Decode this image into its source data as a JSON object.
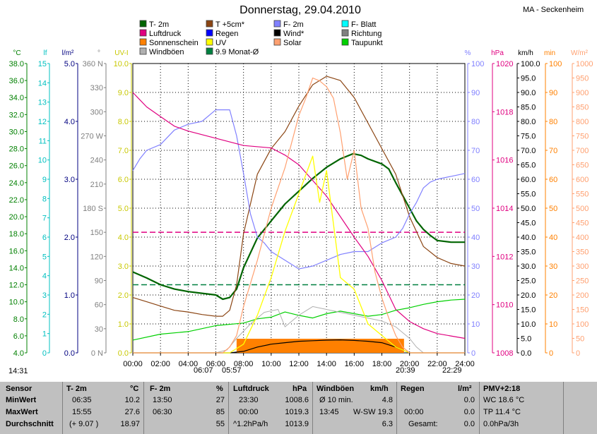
{
  "page": {
    "title": "Donnerstag, 29.04.2010",
    "station": "MA - Seckenheim",
    "sunrise": "06:07",
    "sunset": "20:39",
    "moonrise": "05:57",
    "moonset": "22:29",
    "left_time": "14:31"
  },
  "chart_data": {
    "type": "line",
    "title": "Donnerstag, 29.04.2010",
    "x_ticks": [
      "00:00",
      "02:00",
      "04:00",
      "06:00",
      "08:00",
      "10:00",
      "12:00",
      "14:00",
      "16:00",
      "18:00",
      "20:00",
      "22:00",
      "24:00"
    ],
    "legend": [
      {
        "label": "T- 2m",
        "color": "#006400"
      },
      {
        "label": "T +5cm*",
        "color": "#8b4513"
      },
      {
        "label": "F- 2m",
        "color": "#8080ff"
      },
      {
        "label": "F- Blatt",
        "color": "#00ffff"
      },
      {
        "label": "Luftdruck",
        "color": "#e00080"
      },
      {
        "label": "Regen",
        "color": "#0000ff"
      },
      {
        "label": "Wind*",
        "color": "#000000"
      },
      {
        "label": "Richtung",
        "color": "#808080"
      },
      {
        "label": "Sonnenschein",
        "color": "#ff8000"
      },
      {
        "label": "UV",
        "color": "#ffff00"
      },
      {
        "label": "Solar",
        "color": "#ffa070"
      },
      {
        "label": "Taupunkt",
        "color": "#00d000"
      },
      {
        "label": "Windböen",
        "color": "#b0b0b0"
      },
      {
        "label": "9.9 Monat-Ø",
        "color": "#008040"
      }
    ],
    "axes": [
      {
        "unit": "°C",
        "color": "#008000",
        "ylim": [
          4,
          38
        ],
        "ticks": [
          "38.0",
          "36.0",
          "34.0",
          "32.0",
          "30.0",
          "28.0",
          "26.0",
          "24.0",
          "22.0",
          "20.0",
          "18.0",
          "16.0",
          "14.0",
          "12.0",
          "10.0",
          "8.0",
          "6.0",
          "4.0"
        ]
      },
      {
        "unit": "lf",
        "color": "#00c0c0",
        "ylim": [
          0,
          15
        ],
        "ticks": [
          "15",
          "14",
          "13",
          "12",
          "11",
          "10",
          "9",
          "8",
          "7",
          "6",
          "5",
          "4",
          "3",
          "2",
          "1",
          "0"
        ]
      },
      {
        "unit": "l/m²",
        "color": "#000080",
        "ylim": [
          0,
          5
        ],
        "ticks": [
          "5.0",
          "4.0",
          "3.0",
          "2.0",
          "1.0",
          "0.0"
        ]
      },
      {
        "unit": "°",
        "color": "#808080",
        "ylim": [
          0,
          360
        ],
        "ticks": [
          "360 N",
          "330",
          "300",
          "270 W",
          "240",
          "210",
          "180 S",
          "150",
          "120",
          "90",
          "60",
          "30",
          "0 N"
        ]
      },
      {
        "unit": "UV-I",
        "color": "#c8c800",
        "ylim": [
          0,
          10
        ],
        "ticks": [
          "10.0",
          "9.0",
          "8.0",
          "7.0",
          "6.0",
          "5.0",
          "4.0",
          "3.0",
          "2.0",
          "1.0",
          "0.0"
        ]
      },
      {
        "unit": "%",
        "color": "#8080ff",
        "ylim": [
          0,
          100
        ],
        "ticks": [
          "100",
          "90",
          "80",
          "70",
          "60",
          "50",
          "40",
          "30",
          "20",
          "10",
          "0"
        ]
      },
      {
        "unit": "hPa",
        "color": "#e00080",
        "ylim": [
          1008,
          1020
        ],
        "ticks": [
          "1020",
          "1018",
          "1016",
          "1014",
          "1012",
          "1010",
          "1008"
        ]
      },
      {
        "unit": "km/h",
        "color": "#000000",
        "ylim": [
          0,
          100
        ],
        "ticks": [
          "100.0",
          "95.0",
          "90.0",
          "85.0",
          "80.0",
          "75.0",
          "70.0",
          "65.0",
          "60.0",
          "55.0",
          "50.0",
          "45.0",
          "40.0",
          "35.0",
          "30.0",
          "25.0",
          "20.0",
          "15.0",
          "10.0",
          "5.0",
          "0.0"
        ]
      },
      {
        "unit": "min",
        "color": "#ff8000",
        "ylim": [
          0,
          100
        ],
        "ticks": [
          "100",
          "90",
          "80",
          "70",
          "60",
          "50",
          "40",
          "30",
          "20",
          "10",
          "0"
        ]
      },
      {
        "unit": "W/m²",
        "color": "#ffa070",
        "ylim": [
          0,
          1000
        ],
        "ticks": [
          "1000",
          "950",
          "900",
          "850",
          "800",
          "750",
          "700",
          "650",
          "600",
          "550",
          "500",
          "450",
          "400",
          "350",
          "300",
          "250",
          "200",
          "150",
          "100",
          "50",
          "0"
        ]
      }
    ],
    "series": [
      {
        "name": "T- 2m",
        "axis": "°C",
        "color": "#006400",
        "x": [
          0,
          1,
          2,
          3,
          4,
          5,
          6,
          6.5,
          7,
          7.5,
          8,
          9,
          10,
          11,
          12,
          13,
          14,
          15,
          15.92,
          16.5,
          17,
          18,
          18.5,
          19,
          20,
          20.5,
          21,
          21.5,
          22,
          23,
          24
        ],
        "y": [
          13.5,
          12.8,
          12.0,
          11.5,
          11.2,
          11.0,
          10.8,
          10.3,
          10.5,
          11.5,
          14,
          17.5,
          19.5,
          21.5,
          23,
          24.5,
          25.8,
          26.8,
          27.4,
          27.2,
          26.8,
          26.2,
          25.6,
          24.0,
          21.0,
          19.5,
          18.5,
          17.8,
          17.2,
          17.0,
          17.0
        ]
      },
      {
        "name": "T +5cm*",
        "axis": "°C",
        "color": "#8b4513",
        "x": [
          0,
          1,
          2,
          3,
          4,
          5,
          6,
          6.5,
          7,
          7.5,
          8,
          9,
          10,
          11,
          12,
          13,
          14,
          15,
          16,
          17,
          18,
          19,
          19.5,
          20,
          21,
          22,
          23,
          24
        ],
        "y": [
          10.5,
          10,
          9.5,
          9,
          8.8,
          8.5,
          8.3,
          8.3,
          9,
          12,
          18,
          25,
          28,
          30,
          33,
          35.5,
          36.5,
          36,
          34,
          31,
          28,
          25,
          22.5,
          20,
          16.5,
          15.2,
          14.5,
          14.2
        ]
      },
      {
        "name": "F- 2m",
        "axis": "%",
        "color": "#8080ff",
        "x": [
          0,
          0.5,
          1,
          2,
          3,
          4,
          5,
          6,
          7,
          7.5,
          8,
          8.5,
          9,
          9.5,
          10,
          11,
          12,
          13,
          14,
          15,
          16,
          17,
          18,
          19,
          19.5,
          20,
          20.5,
          21,
          21.5,
          22,
          23,
          24
        ],
        "y": [
          63,
          67,
          70,
          72,
          77,
          79,
          80,
          84,
          84,
          75,
          62,
          48,
          40,
          38,
          35,
          32,
          29,
          30,
          32,
          34,
          35,
          35,
          38,
          40,
          43,
          48,
          52,
          57,
          59,
          60,
          61,
          62
        ]
      },
      {
        "name": "Luftdruck",
        "axis": "hPa",
        "color": "#e00080",
        "x": [
          0,
          0.5,
          1,
          2,
          3,
          4,
          6,
          8,
          10,
          11,
          12,
          14,
          16,
          17,
          18,
          18.5,
          19,
          20,
          21,
          22,
          23,
          24
        ],
        "y": [
          1018.8,
          1018.5,
          1018.2,
          1017.8,
          1017.4,
          1017.2,
          1016.9,
          1016.6,
          1016.5,
          1016.2,
          1015.8,
          1014.5,
          1012.8,
          1012,
          1011,
          1010.4,
          1009.8,
          1009.3,
          1009,
          1008.8,
          1008.7,
          1008.6
        ]
      },
      {
        "name": "Taupunkt",
        "axis": "°C",
        "color": "#00d000",
        "x": [
          0,
          2,
          4,
          6,
          8,
          9,
          10,
          11,
          12,
          13,
          14,
          15,
          16,
          17,
          18,
          19,
          20,
          21,
          22,
          23,
          24
        ],
        "y": [
          5.5,
          6.2,
          6.5,
          7.2,
          7.5,
          8,
          8.2,
          8.8,
          8.4,
          8.1,
          8.6,
          8.9,
          8.6,
          8.3,
          8.5,
          9.0,
          9.3,
          9.7,
          10.0,
          10.2,
          10.3
        ]
      },
      {
        "name": "Windböen",
        "axis": "km/h",
        "color": "#b0b0b0",
        "x": [
          0,
          3,
          6,
          6.8,
          7.5,
          8.5,
          9.5,
          10.5,
          11,
          12,
          13,
          14,
          15,
          16,
          17,
          18,
          19,
          20,
          20.5,
          21,
          24
        ],
        "y": [
          0,
          0,
          0,
          1,
          5,
          10,
          14,
          15,
          9,
          13,
          16,
          15,
          14,
          13,
          12,
          11,
          9,
          5,
          2,
          0,
          0
        ]
      },
      {
        "name": "Wind*",
        "axis": "km/h",
        "color": "#000000",
        "x": [
          0,
          3,
          6,
          7,
          8,
          9,
          10,
          11,
          12,
          13,
          14,
          15,
          16,
          17,
          18,
          19,
          20,
          24
        ],
        "y": [
          0,
          0,
          0,
          0,
          0.5,
          2,
          3,
          3.5,
          4,
          4.2,
          4.4,
          4.5,
          4.3,
          4.0,
          3.5,
          2,
          0,
          0
        ]
      },
      {
        "name": "UV",
        "axis": "UV-I",
        "color": "#ffff00",
        "x": [
          0,
          6,
          7,
          8,
          9,
          10,
          11,
          12,
          13,
          13.5,
          14,
          15,
          16,
          17,
          18,
          19,
          20,
          24
        ],
        "y": [
          0,
          0,
          0,
          0.3,
          1.3,
          2.6,
          4.2,
          5.5,
          6.8,
          5.2,
          6.3,
          2.6,
          2.2,
          1.0,
          0.6,
          0.2,
          0,
          0
        ]
      },
      {
        "name": "Solar",
        "axis": "W/m²",
        "color": "#ffa070",
        "x": [
          0,
          6,
          6.5,
          7,
          7.5,
          8,
          9,
          10,
          11,
          12,
          12.5,
          13,
          13.5,
          14,
          14.5,
          15,
          15.5,
          16,
          16.5,
          17,
          17.5,
          18,
          18.5,
          19,
          19.5,
          20,
          24
        ],
        "y": [
          0,
          0,
          0,
          20,
          60,
          160,
          320,
          500,
          640,
          820,
          880,
          950,
          940,
          920,
          880,
          760,
          600,
          700,
          500,
          430,
          280,
          190,
          120,
          60,
          20,
          0,
          0
        ]
      }
    ],
    "sunshine": {
      "axis": "min",
      "color": "#ff8000",
      "x_start": 7.5,
      "x_end": 19.6
    },
    "dashed_lines": [
      {
        "axis": "hPa",
        "value": 1013.0,
        "color": "#e00080"
      },
      {
        "axis": "°C",
        "value": 12.0,
        "color": "#008040"
      }
    ]
  },
  "stats": {
    "headers": [
      "Sensor",
      "T- 2m",
      "°C",
      "F- 2m",
      "%",
      "Luftdruck",
      "hPa",
      "Windböen",
      "km/h",
      "Regen",
      "l/m²",
      "PMV+2:18"
    ],
    "row_labels": [
      "MinWert",
      "MaxWert",
      "Durchschnitt"
    ],
    "t2m": {
      "min": [
        "06:35",
        "10.2"
      ],
      "max": [
        "15:55",
        "27.6"
      ],
      "avg": [
        "(+ 9.07 )",
        "18.97"
      ]
    },
    "f2m": {
      "min": [
        "13:50",
        "27"
      ],
      "max": [
        "06:30",
        "85"
      ],
      "avg": [
        "",
        "55"
      ]
    },
    "pressure": {
      "min": [
        "23:30",
        "1008.6"
      ],
      "max": [
        "00:00",
        "1019.3"
      ],
      "avg": [
        "^1.2hPa/h",
        "1013.9"
      ]
    },
    "wind": {
      "min": [
        "Ø 10 min.",
        "4.8"
      ],
      "max": [
        "13:45",
        "W-SW 19.3"
      ],
      "avg": [
        "",
        "6.3"
      ]
    },
    "rain": {
      "min": [
        "",
        "0.0"
      ],
      "max": [
        "00:00",
        "0.0"
      ],
      "avg": [
        "Gesamt:",
        "0.0"
      ]
    },
    "pmv": [
      "WC 18.6 °C",
      "TP 11.4 °C",
      "0.0hPa/3h"
    ]
  }
}
